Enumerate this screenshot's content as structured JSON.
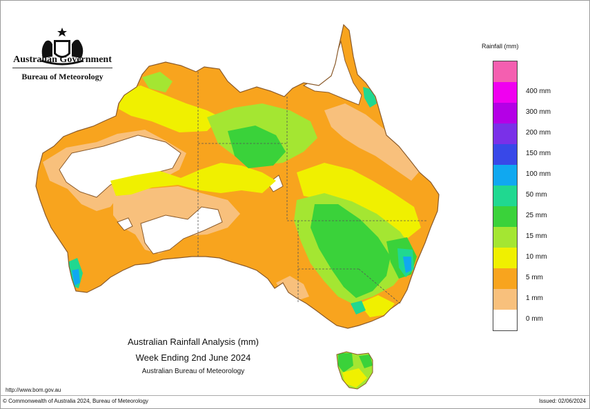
{
  "organisation": {
    "name": "Australian Government",
    "bureau": "Bureau of Meteorology"
  },
  "title": {
    "line1": "Australian Rainfall Analysis (mm)",
    "line2": "Week Ending 2nd June 2024",
    "line3": "Australian Bureau of Meteorology"
  },
  "footer": {
    "url": "http://www.bom.gov.au",
    "copyright": "© Commonwealth of Australia 2024, Bureau of Meteorology",
    "issued": "Issued: 02/06/2024"
  },
  "legend": {
    "title": "Rainfall (mm)",
    "classes": [
      {
        "label": "",
        "color": "#f45fb0"
      },
      {
        "label": "400 mm",
        "color": "#f000f0"
      },
      {
        "label": "300 mm",
        "color": "#b400e6"
      },
      {
        "label": "200 mm",
        "color": "#7a30e8"
      },
      {
        "label": "150 mm",
        "color": "#3848e8"
      },
      {
        "label": "100 mm",
        "color": "#10a8f0"
      },
      {
        "label": "50 mm",
        "color": "#20d890"
      },
      {
        "label": "25 mm",
        "color": "#3ad23a"
      },
      {
        "label": "15 mm",
        "color": "#a4e632"
      },
      {
        "label": "10 mm",
        "color": "#f0f000"
      },
      {
        "label": "5 mm",
        "color": "#f8a41e"
      },
      {
        "label": "1 mm",
        "color": "#f8c07c"
      },
      {
        "label": "0 mm",
        "color": "#ffffff"
      }
    ]
  },
  "map": {
    "background_color": "#ffffff",
    "border_color": "#8a5a2a"
  }
}
